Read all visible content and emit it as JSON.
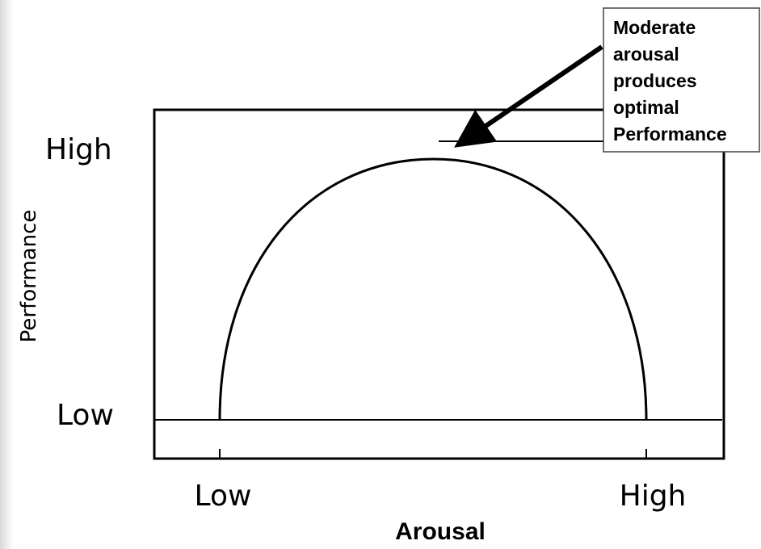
{
  "y_axis": {
    "label": "Performance",
    "high": "High",
    "low": "Low"
  },
  "x_axis": {
    "label": "Arousal",
    "low": "Low",
    "high": "High"
  },
  "annotation": {
    "lines": [
      "Moderate",
      "arousal",
      "produces",
      "optimal",
      "Performance"
    ]
  }
}
